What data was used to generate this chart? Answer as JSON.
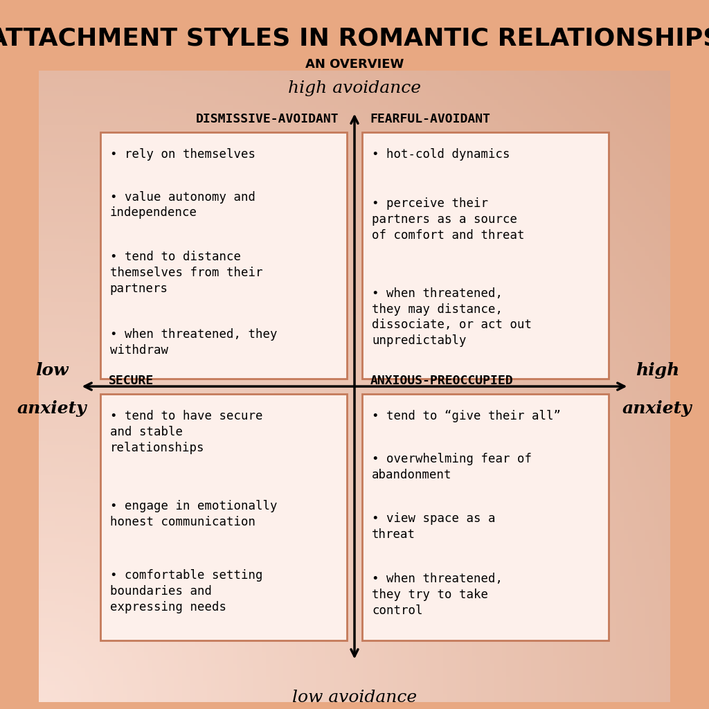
{
  "title": "ATTACHMENT STYLES IN ROMANTIC RELATIONSHIPS",
  "subtitle": "AN OVERVIEW",
  "axis_labels": {
    "top": "high avoidance",
    "bottom": "low avoidance",
    "left_line1": "low",
    "left_line2": "anxiety",
    "right_line1": "high",
    "right_line2": "anxiety"
  },
  "quadrants": {
    "top_left": {
      "name": "DISMISSIVE-AVOIDANT",
      "bullets": [
        "rely on themselves",
        "value autonomy and\nindependence",
        "tend to distance\nthemselves from their\npartners",
        "when threatened, they\nwithdraw"
      ]
    },
    "top_right": {
      "name": "FEARFUL-AVOIDANT",
      "bullets": [
        "hot-cold dynamics",
        "perceive their\npartners as a source\nof comfort and threat",
        "when threatened,\nthey may distance,\ndissociate, or act out\nunpredictably"
      ]
    },
    "bottom_left": {
      "name": "SECURE",
      "bullets": [
        "tend to have secure\nand stable\nrelationships",
        "engage in emotionally\nhonest communication",
        "comfortable setting\nboundaries and\nexpressing needs"
      ]
    },
    "bottom_right": {
      "name": "ANXIOUS-PREOCCUPIED",
      "bullets": [
        "tend to “give their all”",
        "overwhelming fear of\nabandonment",
        "view space as a\nthreat",
        "when threatened,\nthey try to take\ncontrol"
      ]
    }
  },
  "box_fill": "#fdf0eb",
  "box_edge": "#c47a5a",
  "title_fontsize": 26,
  "subtitle_fontsize": 13,
  "axis_label_fontsize": 18,
  "quadrant_name_fontsize": 13,
  "bullet_fontsize": 12.5
}
